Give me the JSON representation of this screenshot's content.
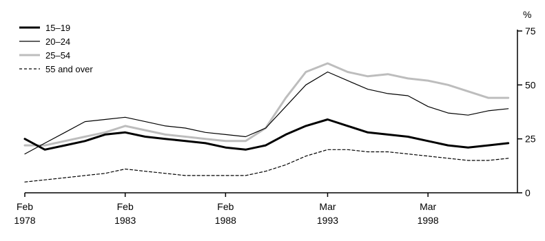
{
  "chart_data": {
    "type": "line",
    "y_unit": "%",
    "yaxis_position": "right",
    "ylim": [
      0,
      75
    ],
    "yticks": [
      0,
      25,
      50,
      75
    ],
    "xlim": [
      "1978-02",
      "2002-06"
    ],
    "xticks": [
      {
        "date": "1978-02",
        "label_top": "Feb",
        "label_bottom": "1978"
      },
      {
        "date": "1983-02",
        "label_top": "Feb",
        "label_bottom": "1983"
      },
      {
        "date": "1988-02",
        "label_top": "Feb",
        "label_bottom": "1988"
      },
      {
        "date": "1993-03",
        "label_top": "Mar",
        "label_bottom": "1993"
      },
      {
        "date": "1998-03",
        "label_top": "Mar",
        "label_bottom": "1998"
      }
    ],
    "grid": false,
    "legend_position": "top-left",
    "series": [
      {
        "name": "15–19",
        "color": "#000000",
        "style": "thick",
        "points": [
          [
            "1978-02",
            25
          ],
          [
            "1979-02",
            20
          ],
          [
            "1980-02",
            22
          ],
          [
            "1981-02",
            24
          ],
          [
            "1982-02",
            27
          ],
          [
            "1983-02",
            28
          ],
          [
            "1984-02",
            26
          ],
          [
            "1985-02",
            25
          ],
          [
            "1986-02",
            24
          ],
          [
            "1987-02",
            23
          ],
          [
            "1988-02",
            21
          ],
          [
            "1989-02",
            20
          ],
          [
            "1990-02",
            22
          ],
          [
            "1991-02",
            27
          ],
          [
            "1992-02",
            31
          ],
          [
            "1993-03",
            34
          ],
          [
            "1994-03",
            31
          ],
          [
            "1995-03",
            28
          ],
          [
            "1996-03",
            27
          ],
          [
            "1997-03",
            26
          ],
          [
            "1998-03",
            24
          ],
          [
            "1999-03",
            22
          ],
          [
            "2000-03",
            21
          ],
          [
            "2001-03",
            22
          ],
          [
            "2002-03",
            23
          ]
        ]
      },
      {
        "name": "20–24",
        "color": "#000000",
        "style": "thin",
        "points": [
          [
            "1978-02",
            18
          ],
          [
            "1979-02",
            23
          ],
          [
            "1980-02",
            28
          ],
          [
            "1981-02",
            33
          ],
          [
            "1982-02",
            34
          ],
          [
            "1983-02",
            35
          ],
          [
            "1984-02",
            33
          ],
          [
            "1985-02",
            31
          ],
          [
            "1986-02",
            30
          ],
          [
            "1987-02",
            28
          ],
          [
            "1988-02",
            27
          ],
          [
            "1989-02",
            26
          ],
          [
            "1990-02",
            30
          ],
          [
            "1991-02",
            40
          ],
          [
            "1992-02",
            50
          ],
          [
            "1993-03",
            56
          ],
          [
            "1994-03",
            52
          ],
          [
            "1995-03",
            48
          ],
          [
            "1996-03",
            46
          ],
          [
            "1997-03",
            45
          ],
          [
            "1998-03",
            40
          ],
          [
            "1999-03",
            37
          ],
          [
            "2000-03",
            36
          ],
          [
            "2001-03",
            38
          ],
          [
            "2002-03",
            39
          ]
        ]
      },
      {
        "name": "25–54",
        "color": "#bdbdbd",
        "style": "thick",
        "points": [
          [
            "1978-02",
            22
          ],
          [
            "1979-02",
            22
          ],
          [
            "1980-02",
            24
          ],
          [
            "1981-02",
            26
          ],
          [
            "1982-02",
            28
          ],
          [
            "1983-02",
            31
          ],
          [
            "1984-02",
            29
          ],
          [
            "1985-02",
            27
          ],
          [
            "1986-02",
            26
          ],
          [
            "1987-02",
            25
          ],
          [
            "1988-02",
            24
          ],
          [
            "1989-02",
            24
          ],
          [
            "1990-02",
            30
          ],
          [
            "1991-02",
            44
          ],
          [
            "1992-02",
            56
          ],
          [
            "1993-03",
            60
          ],
          [
            "1994-03",
            56
          ],
          [
            "1995-03",
            54
          ],
          [
            "1996-03",
            55
          ],
          [
            "1997-03",
            53
          ],
          [
            "1998-03",
            52
          ],
          [
            "1999-03",
            50
          ],
          [
            "2000-03",
            47
          ],
          [
            "2001-03",
            44
          ],
          [
            "2002-03",
            44
          ]
        ]
      },
      {
        "name": "55 and over",
        "color": "#000000",
        "style": "dashed",
        "points": [
          [
            "1978-02",
            5
          ],
          [
            "1979-02",
            6
          ],
          [
            "1980-02",
            7
          ],
          [
            "1981-02",
            8
          ],
          [
            "1982-02",
            9
          ],
          [
            "1983-02",
            11
          ],
          [
            "1984-02",
            10
          ],
          [
            "1985-02",
            9
          ],
          [
            "1986-02",
            8
          ],
          [
            "1987-02",
            8
          ],
          [
            "1988-02",
            8
          ],
          [
            "1989-02",
            8
          ],
          [
            "1990-02",
            10
          ],
          [
            "1991-02",
            13
          ],
          [
            "1992-02",
            17
          ],
          [
            "1993-03",
            20
          ],
          [
            "1994-03",
            20
          ],
          [
            "1995-03",
            19
          ],
          [
            "1996-03",
            19
          ],
          [
            "1997-03",
            18
          ],
          [
            "1998-03",
            17
          ],
          [
            "1999-03",
            16
          ],
          [
            "2000-03",
            15
          ],
          [
            "2001-03",
            15
          ],
          [
            "2002-03",
            16
          ]
        ]
      }
    ]
  }
}
